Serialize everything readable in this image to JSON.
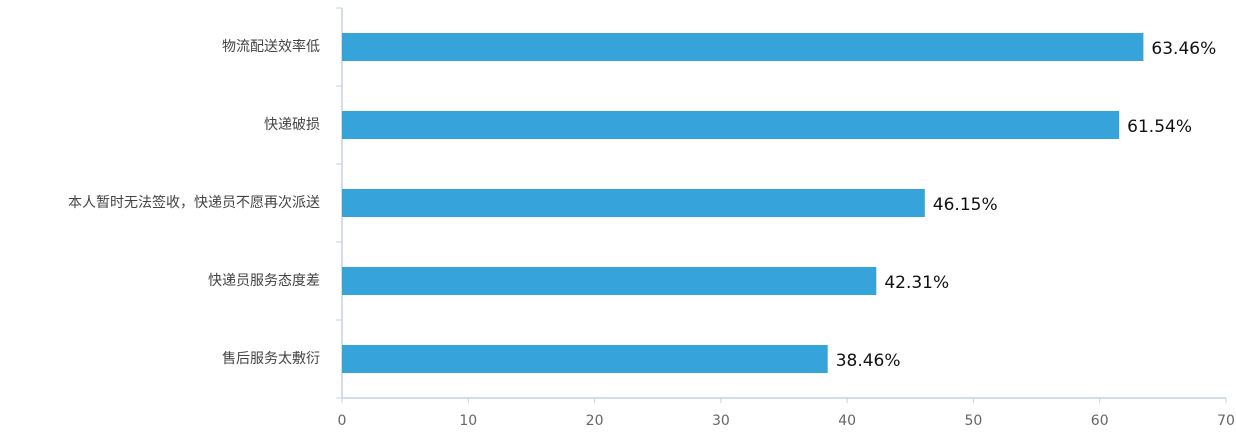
{
  "chart_data": {
    "type": "bar",
    "orientation": "horizontal",
    "categories": [
      "物流配送效率低",
      "快递破损",
      "本人暂时无法签收，快递员不愿再次派送",
      "快递员服务态度差",
      "售后服务太敷衍"
    ],
    "values": [
      63.46,
      61.54,
      46.15,
      42.31,
      38.46
    ],
    "value_labels": [
      "63.46%",
      "61.54%",
      "46.15%",
      "42.31%",
      "38.46%"
    ],
    "color": "#36a3db",
    "xlim": [
      0,
      70
    ],
    "xticks": [
      0,
      10,
      20,
      30,
      40,
      50,
      60,
      70
    ],
    "grid": false
  }
}
